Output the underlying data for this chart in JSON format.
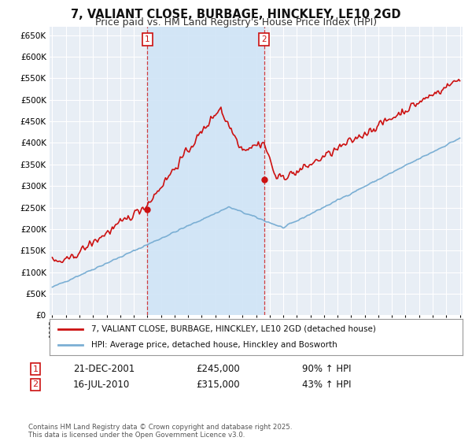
{
  "title": "7, VALIANT CLOSE, BURBAGE, HINCKLEY, LE10 2GD",
  "subtitle": "Price paid vs. HM Land Registry's House Price Index (HPI)",
  "title_fontsize": 10.5,
  "subtitle_fontsize": 9,
  "ylim": [
    0,
    670000
  ],
  "ytick_step": 50000,
  "background_color": "#ffffff",
  "plot_bg_color": "#e8eef5",
  "grid_color": "#ffffff",
  "hpi_color": "#7bafd4",
  "price_color": "#cc1111",
  "shade_color": "#d0e4f7",
  "marker1_x": 2002.0,
  "marker2_x": 2010.58,
  "marker1_price": 245000,
  "marker2_price": 315000,
  "legend_hpi": "HPI: Average price, detached house, Hinckley and Bosworth",
  "legend_price": "7, VALIANT CLOSE, BURBAGE, HINCKLEY, LE10 2GD (detached house)",
  "annotation1_date": "21-DEC-2001",
  "annotation1_price": "£245,000",
  "annotation1_hpi": "90% ↑ HPI",
  "annotation2_date": "16-JUL-2010",
  "annotation2_price": "£315,000",
  "annotation2_hpi": "43% ↑ HPI",
  "footer": "Contains HM Land Registry data © Crown copyright and database right 2025.\nThis data is licensed under the Open Government Licence v3.0.",
  "x_start_year": 1995,
  "x_end_year": 2025
}
